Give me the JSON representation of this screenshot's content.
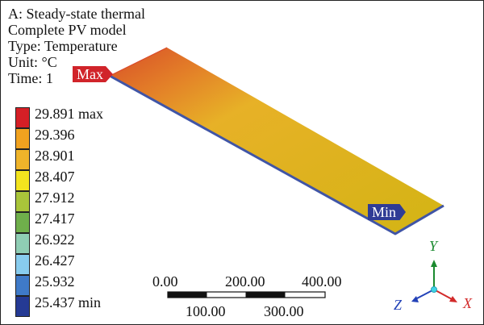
{
  "header": {
    "line1": "A: Steady-state thermal",
    "line2": "Complete PV model",
    "line3": "Type: Temperature",
    "line4": "Unit: °C",
    "line5": "Time: 1"
  },
  "legend": {
    "items": [
      {
        "label": "29.891 max",
        "color": "#d51f26"
      },
      {
        "label": "29.396",
        "color": "#f1a21f"
      },
      {
        "label": "28.901",
        "color": "#efb42a"
      },
      {
        "label": "28.407",
        "color": "#f3e41e"
      },
      {
        "label": "27.912",
        "color": "#a9c53a"
      },
      {
        "label": "27.417",
        "color": "#6faf4b"
      },
      {
        "label": "26.922",
        "color": "#8fcdb4"
      },
      {
        "label": "26.427",
        "color": "#88ccee"
      },
      {
        "label": "25.932",
        "color": "#3f7ac8"
      },
      {
        "label": "25.437 min",
        "color": "#253a94"
      }
    ]
  },
  "markers": {
    "max": "Max",
    "min": "Min"
  },
  "scale": {
    "top_left": "0.00",
    "top_mid": "200.00",
    "top_right": "400.00",
    "bottom_left": "100.00",
    "bottom_right": "300.00"
  },
  "axes": {
    "x": "X",
    "y": "Y",
    "z": "Z"
  },
  "colors": {
    "plate_hot": "#d84e29",
    "plate_mid": "#e7b127",
    "plate_cool": "#d3b414",
    "plate_edge": "#4055a6"
  }
}
